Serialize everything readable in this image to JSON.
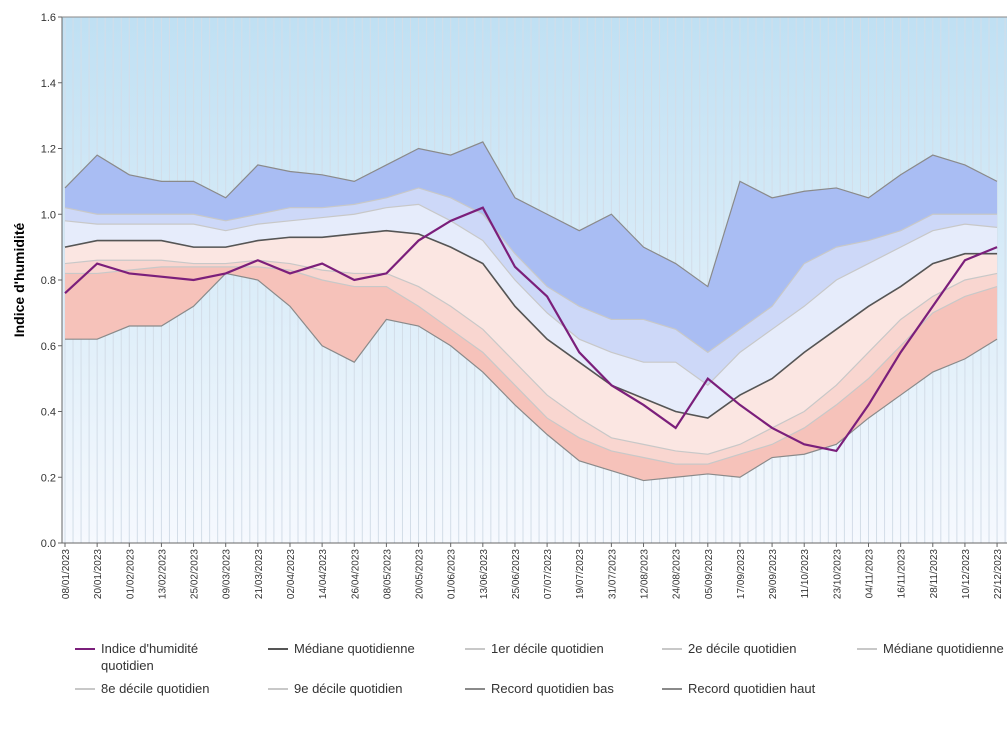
{
  "chart_data": {
    "type": "line",
    "y_label": "Indice d'humidité",
    "categories": [
      "08/01/2023",
      "20/01/2023",
      "01/02/2023",
      "13/02/2023",
      "25/02/2023",
      "09/03/2023",
      "21/03/2023",
      "02/04/2023",
      "14/04/2023",
      "26/04/2023",
      "08/05/2023",
      "20/05/2023",
      "01/06/2023",
      "13/06/2023",
      "25/06/2023",
      "07/07/2023",
      "19/07/2023",
      "31/07/2023",
      "12/08/2023",
      "24/08/2023",
      "05/09/2023",
      "17/09/2023",
      "29/09/2023",
      "11/10/2023",
      "23/10/2023",
      "04/11/2023",
      "16/11/2023",
      "28/11/2023",
      "10/12/2023",
      "22/12/2023"
    ],
    "ylim": [
      0,
      1.6
    ],
    "yticks": [
      {
        "value": 0,
        "label": "0.0"
      },
      0.2,
      0.4,
      0.6,
      0.8,
      {
        "value": 1,
        "label": "1.0"
      },
      1.2,
      1.4,
      1.6
    ],
    "grid": true,
    "series": [
      {
        "name": "Indice d'humidité quotidien",
        "color": "#7b1f7b",
        "values": [
          0.76,
          0.85,
          0.82,
          0.81,
          0.8,
          0.82,
          0.86,
          0.82,
          0.85,
          0.8,
          0.82,
          0.92,
          0.98,
          1.02,
          0.84,
          0.75,
          0.58,
          0.48,
          0.42,
          0.35,
          0.5,
          0.42,
          0.35,
          0.3,
          0.28,
          0.42,
          0.58,
          0.72,
          0.86,
          0.9
        ]
      },
      {
        "name": "Médiane quotidienne",
        "color": "#555555",
        "values": [
          0.9,
          0.92,
          0.92,
          0.92,
          0.9,
          0.9,
          0.92,
          0.93,
          0.93,
          0.94,
          0.95,
          0.94,
          0.9,
          0.85,
          0.72,
          0.62,
          0.55,
          0.48,
          0.44,
          0.4,
          0.38,
          0.45,
          0.5,
          0.58,
          0.65,
          0.72,
          0.78,
          0.85,
          0.88,
          0.88
        ]
      },
      {
        "name": "1er décile quotidien",
        "color": "#c8c8c8",
        "fill": "#f6c2ba",
        "values": [
          0.82,
          0.82,
          0.83,
          0.84,
          0.84,
          0.84,
          0.84,
          0.83,
          0.8,
          0.78,
          0.78,
          0.72,
          0.65,
          0.58,
          0.48,
          0.38,
          0.32,
          0.28,
          0.26,
          0.24,
          0.24,
          0.27,
          0.3,
          0.35,
          0.42,
          0.5,
          0.6,
          0.7,
          0.75,
          0.78
        ]
      },
      {
        "name": "2e décile quotidien",
        "color": "#c8c8c8",
        "fill": "#f9d6d0",
        "values": [
          0.85,
          0.86,
          0.86,
          0.86,
          0.85,
          0.85,
          0.86,
          0.85,
          0.83,
          0.82,
          0.82,
          0.78,
          0.72,
          0.65,
          0.55,
          0.45,
          0.38,
          0.32,
          0.3,
          0.28,
          0.27,
          0.3,
          0.35,
          0.4,
          0.48,
          0.58,
          0.68,
          0.75,
          0.8,
          0.82
        ]
      },
      {
        "name": "Médiane quotidienne",
        "color": "#c8c8c8",
        "fill": "#fbe6e2",
        "values": [
          0.9,
          0.92,
          0.92,
          0.92,
          0.9,
          0.9,
          0.92,
          0.93,
          0.93,
          0.94,
          0.95,
          0.94,
          0.9,
          0.85,
          0.72,
          0.62,
          0.55,
          0.48,
          0.44,
          0.4,
          0.38,
          0.45,
          0.5,
          0.58,
          0.65,
          0.72,
          0.78,
          0.85,
          0.88,
          0.88
        ]
      },
      {
        "name": "8e décile quotidien",
        "color": "#c8c8c8",
        "fill": "#e6ecfb",
        "values": [
          0.98,
          0.97,
          0.97,
          0.97,
          0.97,
          0.95,
          0.97,
          0.98,
          0.99,
          1.0,
          1.02,
          1.03,
          0.98,
          0.92,
          0.8,
          0.7,
          0.62,
          0.58,
          0.55,
          0.55,
          0.48,
          0.58,
          0.65,
          0.72,
          0.8,
          0.85,
          0.9,
          0.95,
          0.97,
          0.96
        ]
      },
      {
        "name": "9e décile quotidien",
        "color": "#c8c8c8",
        "fill": "#cdd8f8",
        "values": [
          1.02,
          1.0,
          1.0,
          1.0,
          1.0,
          0.98,
          1.0,
          1.02,
          1.02,
          1.03,
          1.05,
          1.08,
          1.05,
          1.0,
          0.88,
          0.78,
          0.72,
          0.68,
          0.68,
          0.65,
          0.58,
          0.65,
          0.72,
          0.85,
          0.9,
          0.92,
          0.95,
          1.0,
          1.0,
          1.0
        ]
      },
      {
        "name": "Record quotidien bas",
        "color": "#8a8a8a",
        "values": [
          0.62,
          0.62,
          0.66,
          0.66,
          0.72,
          0.82,
          0.8,
          0.72,
          0.6,
          0.55,
          0.68,
          0.66,
          0.6,
          0.52,
          0.42,
          0.33,
          0.25,
          0.22,
          0.19,
          0.2,
          0.21,
          0.2,
          0.26,
          0.27,
          0.3,
          0.38,
          0.45,
          0.52,
          0.56,
          0.62
        ]
      },
      {
        "name": "Record quotidien haut",
        "color": "#8a8a8a",
        "fill": "#a9bdf3",
        "values": [
          1.08,
          1.18,
          1.12,
          1.1,
          1.1,
          1.05,
          1.15,
          1.13,
          1.12,
          1.1,
          1.15,
          1.2,
          1.18,
          1.22,
          1.05,
          1.0,
          0.95,
          1.0,
          0.9,
          0.85,
          0.78,
          1.1,
          1.05,
          1.07,
          1.08,
          1.05,
          1.12,
          1.18,
          1.15,
          1.1
        ]
      }
    ]
  }
}
